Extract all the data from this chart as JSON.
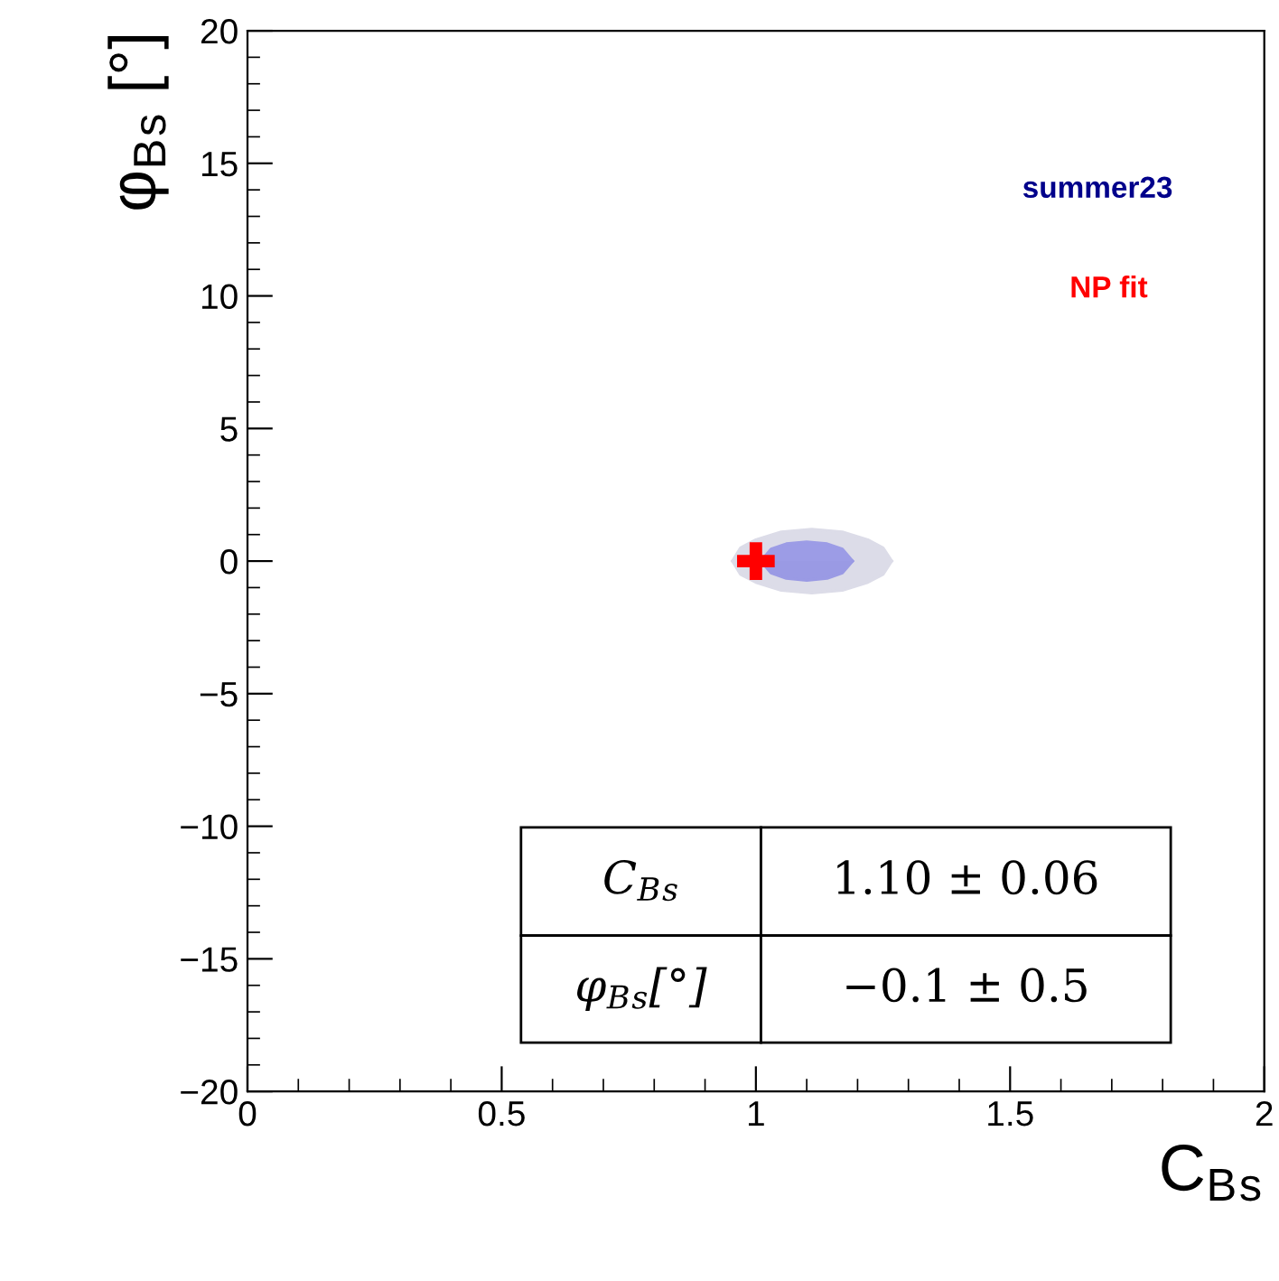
{
  "chart_data": {
    "type": "area",
    "xlabel": "C$_{B}$$_{s}$",
    "ylabel": "φ$_{B}$$_{s}$ [°]",
    "xlim": [
      0,
      2
    ],
    "xticks": [
      0,
      0.5,
      1,
      1.5,
      2
    ],
    "ylim": [
      -20,
      20
    ],
    "yticks": [
      -20,
      -15,
      -10,
      -5,
      0,
      5,
      10,
      15,
      20
    ],
    "grid": false,
    "legend": false,
    "annotations": [
      "summer23",
      "NP fit",
      "C$_{B}$$_{s}$",
      "1.10 ± 0.06",
      "φ$_{B}$$_{s}$[°]",
      "−0.1 ± 0.5"
    ],
    "series": [
      {
        "color": "#dcdce8",
        "x": [
          0.954,
          0.97,
          1.0,
          1.05,
          1.11,
          1.17,
          1.22,
          1.25,
          1.267
        ],
        "values": [
          0,
          0.5,
          0.8,
          1.1,
          1.2,
          1.1,
          0.8,
          0.5,
          0
        ]
      },
      {
        "color": "#dcdce8",
        "x": [
          0.954,
          0.97,
          1.0,
          1.05,
          1.11,
          1.17,
          1.22,
          1.25,
          1.267
        ],
        "values": [
          0,
          -0.5,
          -0.8,
          -1.1,
          -1.2,
          -1.1,
          -0.8,
          -0.5,
          0
        ]
      },
      {
        "color": "#9c9ce6",
        "x": [
          1.01,
          1.03,
          1.06,
          1.1,
          1.14,
          1.17,
          1.19
        ],
        "values": [
          0,
          0.45,
          0.65,
          0.72,
          0.65,
          0.45,
          0
        ]
      },
      {
        "color": "#9a9ae4",
        "x": [
          1.01,
          1.03,
          1.06,
          1.1,
          1.14,
          1.17,
          1.19
        ],
        "values": [
          0,
          -0.45,
          -0.65,
          -0.72,
          -0.65,
          -0.45,
          0
        ]
      },
      {
        "type": "scatter",
        "color": "#ff0000",
        "marker": "cross",
        "x": [
          1.0
        ],
        "values": [
          0
        ]
      }
    ]
  }
}
